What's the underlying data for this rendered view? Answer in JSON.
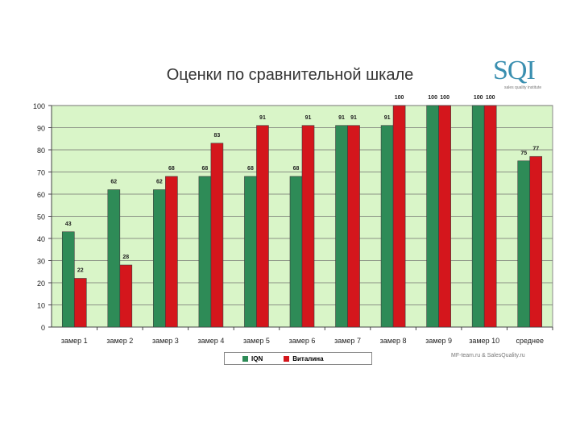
{
  "chart_data": {
    "type": "bar",
    "title": "Оценки по сравнительной шкале",
    "categories": [
      "замер 1",
      "замер 2",
      "замер 3",
      "замер 4",
      "замер 5",
      "замер 6",
      "замер 7",
      "замер 8",
      "замер 9",
      "замер 10",
      "среднее"
    ],
    "series": [
      {
        "name": "IQN",
        "color": "#2e8b57",
        "values": [
          43,
          62,
          62,
          68,
          68,
          68,
          91,
          91,
          100,
          100,
          75
        ],
        "labels": [
          "43",
          "62",
          "62",
          "68",
          "68",
          "68",
          "91",
          "91",
          "100",
          "100",
          "75"
        ]
      },
      {
        "name": "Виталина",
        "color": "#d4161c",
        "values": [
          22,
          28,
          68,
          83,
          91,
          91,
          91,
          100,
          100,
          100,
          77
        ],
        "labels": [
          "22",
          "28",
          "68",
          "83",
          "91",
          "91",
          "91",
          "100",
          "100",
          "100",
          "77"
        ]
      }
    ],
    "ylim": [
      0,
      100
    ],
    "yticks": [
      0,
      10,
      20,
      30,
      40,
      50,
      60,
      70,
      80,
      90,
      100
    ],
    "grid": true,
    "legend_position": "bottom",
    "plot_background": "#d9f5c8"
  },
  "logo": {
    "text": "SQI",
    "subtitle": "sales quality institute"
  },
  "credit": "MF-team.ru & SalesQuality.ru"
}
